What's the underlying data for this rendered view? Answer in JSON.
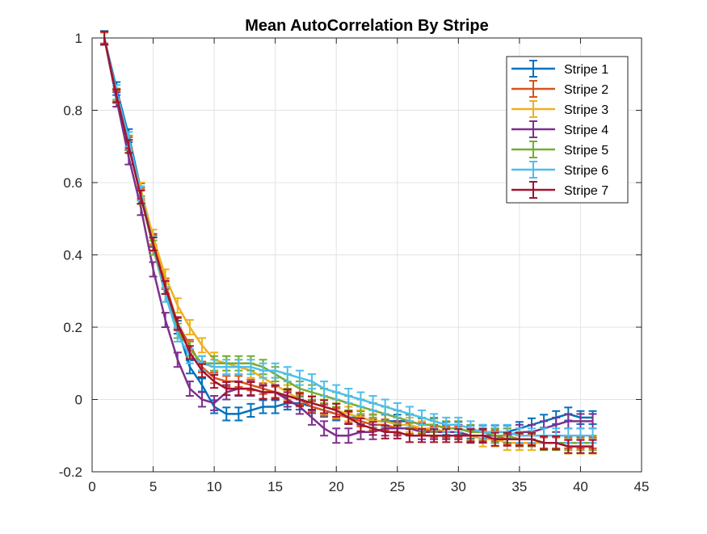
{
  "chart_data": {
    "type": "line",
    "title": "Mean AutoCorrelation By Stripe",
    "xlabel": "",
    "ylabel": "",
    "xlim": [
      0,
      45
    ],
    "ylim": [
      -0.2,
      1
    ],
    "xticks": [
      "0",
      "5",
      "10",
      "15",
      "20",
      "25",
      "30",
      "35",
      "40",
      "45"
    ],
    "yticks": [
      "-0.2",
      "0",
      "0.2",
      "0.4",
      "0.6",
      "0.8",
      "1"
    ],
    "grid": true,
    "legend_position": "top-right",
    "error_bars": true,
    "x": [
      1,
      2,
      3,
      4,
      5,
      6,
      7,
      8,
      9,
      10,
      11,
      12,
      13,
      14,
      15,
      16,
      17,
      18,
      19,
      20,
      21,
      22,
      23,
      24,
      25,
      26,
      27,
      28,
      29,
      30,
      31,
      32,
      33,
      34,
      35,
      36,
      37,
      38,
      39,
      40,
      41
    ],
    "series": [
      {
        "name": "Stripe 1",
        "color": "#0072BD",
        "err": 0.018,
        "values": [
          1.0,
          0.86,
          0.73,
          0.58,
          0.44,
          0.31,
          0.2,
          0.09,
          0.04,
          -0.02,
          -0.04,
          -0.04,
          -0.03,
          -0.02,
          -0.02,
          -0.01,
          -0.01,
          -0.02,
          -0.03,
          -0.04,
          -0.05,
          -0.05,
          -0.06,
          -0.06,
          -0.06,
          -0.06,
          -0.07,
          -0.07,
          -0.08,
          -0.08,
          -0.09,
          -0.09,
          -0.09,
          -0.09,
          -0.08,
          -0.07,
          -0.06,
          -0.05,
          -0.04,
          -0.05,
          -0.05
        ]
      },
      {
        "name": "Stripe 2",
        "color": "#D95319",
        "err": 0.015,
        "values": [
          1.0,
          0.84,
          0.71,
          0.57,
          0.44,
          0.32,
          0.21,
          0.15,
          0.09,
          0.06,
          0.05,
          0.05,
          0.04,
          0.03,
          0.02,
          0.01,
          0.0,
          -0.02,
          -0.03,
          -0.04,
          -0.05,
          -0.06,
          -0.07,
          -0.07,
          -0.08,
          -0.08,
          -0.08,
          -0.09,
          -0.09,
          -0.09,
          -0.1,
          -0.1,
          -0.1,
          -0.11,
          -0.11,
          -0.11,
          -0.12,
          -0.12,
          -0.12,
          -0.12,
          -0.12
        ]
      },
      {
        "name": "Stripe 3",
        "color": "#EDB120",
        "err": 0.02,
        "values": [
          1.0,
          0.84,
          0.71,
          0.58,
          0.45,
          0.34,
          0.26,
          0.2,
          0.15,
          0.11,
          0.1,
          0.09,
          0.08,
          0.06,
          0.04,
          0.02,
          0.0,
          -0.01,
          -0.02,
          -0.03,
          -0.04,
          -0.05,
          -0.06,
          -0.06,
          -0.07,
          -0.07,
          -0.08,
          -0.08,
          -0.09,
          -0.09,
          -0.1,
          -0.11,
          -0.11,
          -0.12,
          -0.12,
          -0.12,
          -0.12,
          -0.12,
          -0.13,
          -0.13,
          -0.13
        ]
      },
      {
        "name": "Stripe 4",
        "color": "#7E2F8E",
        "err": 0.02,
        "values": [
          1.0,
          0.83,
          0.67,
          0.53,
          0.36,
          0.22,
          0.11,
          0.03,
          0.0,
          -0.01,
          0.02,
          0.03,
          0.03,
          0.02,
          0.02,
          0.0,
          -0.02,
          -0.05,
          -0.08,
          -0.1,
          -0.1,
          -0.09,
          -0.09,
          -0.08,
          -0.08,
          -0.08,
          -0.09,
          -0.09,
          -0.09,
          -0.09,
          -0.1,
          -0.1,
          -0.1,
          -0.1,
          -0.09,
          -0.09,
          -0.08,
          -0.07,
          -0.06,
          -0.06,
          -0.06
        ]
      },
      {
        "name": "Stripe 5",
        "color": "#77AC30",
        "err": 0.02,
        "values": [
          1.0,
          0.84,
          0.71,
          0.56,
          0.42,
          0.29,
          0.19,
          0.14,
          0.1,
          0.1,
          0.1,
          0.1,
          0.1,
          0.09,
          0.07,
          0.05,
          0.03,
          0.02,
          0.01,
          0.0,
          -0.01,
          -0.02,
          -0.03,
          -0.04,
          -0.05,
          -0.06,
          -0.07,
          -0.07,
          -0.08,
          -0.08,
          -0.09,
          -0.09,
          -0.1,
          -0.1,
          -0.11,
          -0.11,
          -0.12,
          -0.12,
          -0.12,
          -0.12,
          -0.12
        ]
      },
      {
        "name": "Stripe 6",
        "color": "#4DBEEE",
        "err": 0.02,
        "values": [
          1.0,
          0.85,
          0.72,
          0.57,
          0.43,
          0.29,
          0.18,
          0.12,
          0.1,
          0.09,
          0.09,
          0.09,
          0.09,
          0.08,
          0.08,
          0.07,
          0.06,
          0.05,
          0.03,
          0.02,
          0.01,
          0.0,
          -0.01,
          -0.02,
          -0.03,
          -0.04,
          -0.05,
          -0.06,
          -0.07,
          -0.07,
          -0.08,
          -0.09,
          -0.09,
          -0.09,
          -0.1,
          -0.1,
          -0.1,
          -0.1,
          -0.1,
          -0.1,
          -0.1
        ]
      },
      {
        "name": "Stripe 7",
        "color": "#A2142F",
        "err": 0.018,
        "values": [
          1.0,
          0.84,
          0.7,
          0.56,
          0.43,
          0.31,
          0.21,
          0.13,
          0.08,
          0.05,
          0.03,
          0.03,
          0.03,
          0.02,
          0.02,
          0.01,
          0.0,
          -0.01,
          -0.02,
          -0.03,
          -0.05,
          -0.07,
          -0.08,
          -0.09,
          -0.09,
          -0.1,
          -0.1,
          -0.1,
          -0.1,
          -0.1,
          -0.1,
          -0.1,
          -0.11,
          -0.11,
          -0.11,
          -0.11,
          -0.12,
          -0.12,
          -0.13,
          -0.13,
          -0.13
        ]
      }
    ]
  }
}
